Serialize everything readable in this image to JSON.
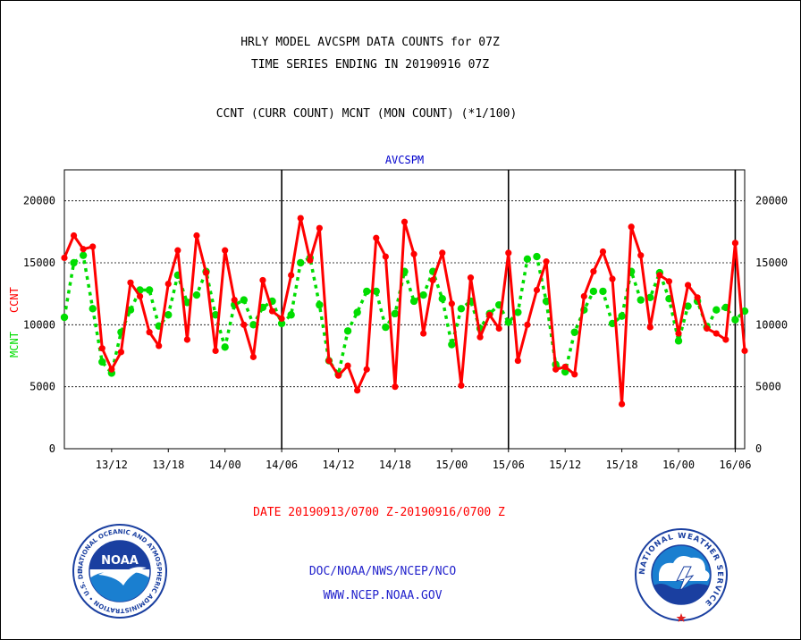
{
  "header": {
    "line1": "HRLY MODEL AVCSPM DATA COUNTS for 07Z",
    "line2": "TIME SERIES ENDING IN 20190916 07Z",
    "line3": "CCNT (CURR COUNT) MCNT (MON COUNT) (*1/100)"
  },
  "footer": {
    "date_range": "DATE 20190913/0700 Z-20190916/0700 Z",
    "org": "DOC/NOAA/NWS/NCEP/NCO",
    "url": "WWW.NCEP.NOAA.GOV"
  },
  "logos": {
    "noaa_text": "NOAA",
    "noaa_ring": "NATIONAL OCEANIC AND ATMOSPHERIC ADMINISTRATION • U.S. DEPARTMENT OF COMMERCE •",
    "nws_ring": "NATIONAL WEATHER SERVICE"
  },
  "colors": {
    "ccnt": "#ff0000",
    "mcnt": "#00dd00",
    "title": "#0000cc",
    "footer_blue": "#2222cc",
    "date_red": "#ff0000"
  },
  "chart_data": {
    "type": "line",
    "title": "AVCSPM",
    "ylabel_left": "CCNT",
    "ylabel_right": "MCNT",
    "ylim": [
      0,
      22500
    ],
    "y_ticks": [
      0,
      5000,
      10000,
      15000,
      20000
    ],
    "y_tick_labels": [
      "0",
      "5000",
      "10000",
      "15000",
      "20000"
    ],
    "x_tick_labels": [
      "13/12",
      "13/18",
      "14/00",
      "14/06",
      "14/12",
      "14/18",
      "15/00",
      "15/06",
      "15/12",
      "15/18",
      "16/00",
      "16/06"
    ],
    "x_tick_hours": [
      5,
      11,
      17,
      23,
      29,
      35,
      41,
      47,
      53,
      59,
      65,
      71
    ],
    "x_range_hours": [
      0,
      72
    ],
    "day_boundaries_hours": [
      23,
      47,
      71
    ],
    "grid": true,
    "series": [
      {
        "name": "CCNT",
        "values": [
          15400,
          17200,
          16100,
          16300,
          8100,
          6400,
          7800,
          13400,
          12300,
          9400,
          8300,
          13300,
          16000,
          8800,
          17200,
          14200,
          7900,
          16000,
          12000,
          10000,
          7400,
          13600,
          11100,
          10500,
          14000,
          18600,
          15200,
          17800,
          7100,
          5900,
          6700,
          4700,
          6400,
          17000,
          15500,
          5000,
          18300,
          15700,
          9300,
          13600,
          15800,
          11700,
          5100,
          13800,
          9000,
          10800,
          9700,
          15800,
          7100,
          10000,
          12800,
          15100,
          6400,
          6600,
          6000,
          12300,
          14300,
          15900,
          13700,
          3600,
          17900,
          15600,
          9800,
          14000,
          13500,
          9300,
          13200,
          12200,
          9700,
          9300,
          8800,
          16600,
          7900
        ]
      },
      {
        "name": "MCNT",
        "values": [
          10600,
          15000,
          15600,
          11300,
          7000,
          6100,
          9400,
          11200,
          12800,
          12800,
          9900,
          10800,
          14000,
          11800,
          12400,
          14300,
          10800,
          8200,
          11600,
          12000,
          10000,
          11400,
          11900,
          10100,
          10800,
          15000,
          15400,
          11600,
          7100,
          6000,
          9500,
          11000,
          12700,
          12700,
          9800,
          10900,
          14300,
          11900,
          12400,
          14300,
          12100,
          8400,
          11300,
          11900,
          9700,
          10900,
          11600,
          10200,
          11000,
          15300,
          15500,
          11900,
          6800,
          6200,
          9400,
          11200,
          12700,
          12700,
          10100,
          10700,
          14300,
          12000,
          12200,
          14200,
          12100,
          8700,
          11500,
          11900,
          9800,
          11200,
          11400,
          10400,
          11100
        ]
      }
    ]
  }
}
